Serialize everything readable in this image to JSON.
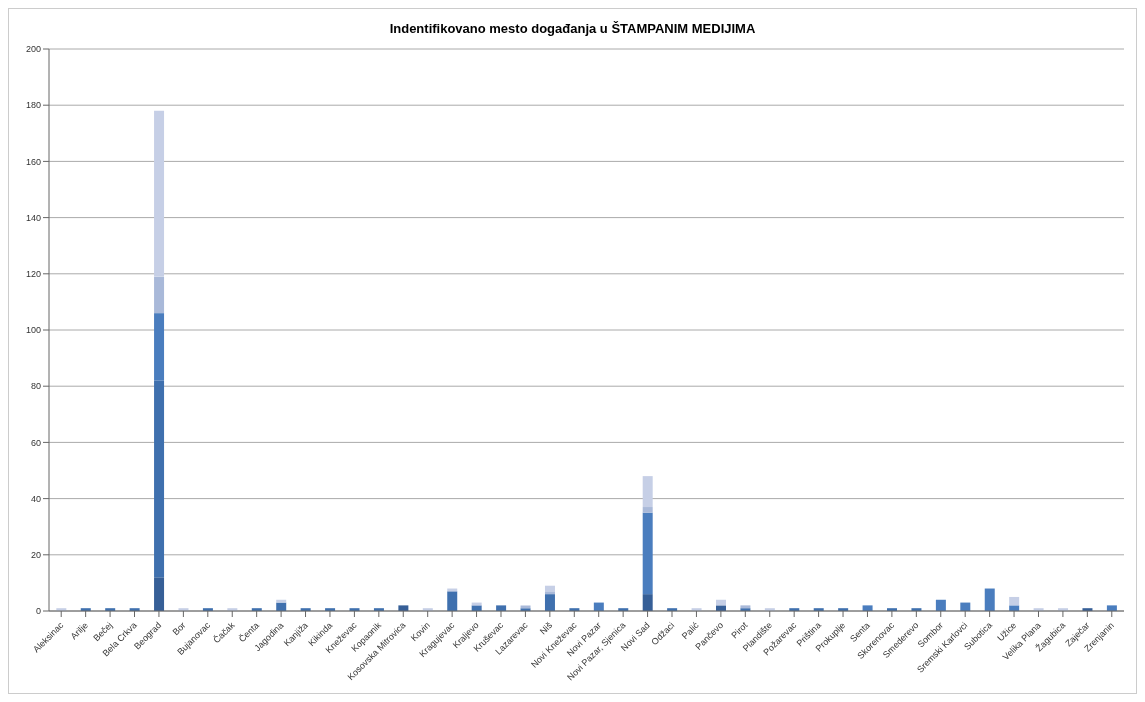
{
  "chart_data": {
    "type": "bar",
    "title": "Indentifikovano mesto događanja u ŠTAMPANIM MEDIJIMA",
    "categories": [
      "Aleksinac",
      "Arilje",
      "Bečej",
      "Bela Crkva",
      "Beograd",
      "Bor",
      "Bujanovac",
      "Čačak",
      "Čenta",
      "Jagodina",
      "Kanjiža",
      "Kikinda",
      "Kneževac",
      "Kopaonik",
      "Kosovska Mitrovica",
      "Kovin",
      "Kragujevac",
      "Kraljevo",
      "Kruševac",
      "Lazarevac",
      "Niš",
      "Novi Kneževac",
      "Novi Pazar",
      "Novi Pazar, Sjenica",
      "Novi Sad",
      "Odžaci",
      "Palić",
      "Pančevo",
      "Pirot",
      "Plandište",
      "Požarevac",
      "Priština",
      "Prokuplje",
      "Senta",
      "Skorenovac",
      "Smederevo",
      "Sombor",
      "Sremski Karlovci",
      "Subotica",
      "Užice",
      "Velika Plana",
      "Žagubica",
      "Zaječar",
      "Zrenjanin"
    ],
    "stacked": true,
    "series": [
      {
        "color": "#365f97",
        "values": [
          null,
          null,
          null,
          null,
          12,
          null,
          null,
          null,
          null,
          null,
          null,
          null,
          null,
          null,
          2,
          null,
          null,
          null,
          null,
          null,
          null,
          null,
          null,
          null,
          6,
          null,
          null,
          2,
          null,
          null,
          null,
          null,
          null,
          null,
          null,
          null,
          null,
          null,
          null,
          null,
          null,
          null,
          1,
          null
        ]
      },
      {
        "color": "#3f70ae",
        "values": [
          null,
          1,
          1,
          1,
          70,
          null,
          1,
          null,
          1,
          3,
          1,
          1,
          1,
          1,
          null,
          null,
          7,
          2,
          2,
          1,
          6,
          1,
          null,
          1,
          null,
          1,
          null,
          null,
          1,
          null,
          1,
          1,
          1,
          null,
          1,
          1,
          null,
          null,
          null,
          null,
          null,
          null,
          null,
          null
        ]
      },
      {
        "color": "#4a7dbe",
        "values": [
          null,
          null,
          null,
          null,
          24,
          null,
          null,
          null,
          null,
          null,
          null,
          null,
          null,
          null,
          null,
          null,
          null,
          null,
          null,
          null,
          null,
          null,
          3,
          null,
          29,
          null,
          null,
          null,
          null,
          null,
          null,
          null,
          null,
          2,
          null,
          null,
          4,
          3,
          8,
          2,
          null,
          null,
          null,
          2
        ]
      },
      {
        "color": "#a9b9d9",
        "values": [
          null,
          null,
          null,
          null,
          13,
          null,
          null,
          null,
          null,
          null,
          null,
          null,
          null,
          null,
          null,
          null,
          null,
          null,
          null,
          1,
          1,
          null,
          null,
          null,
          2,
          null,
          null,
          null,
          1,
          null,
          null,
          null,
          null,
          null,
          null,
          null,
          null,
          null,
          null,
          null,
          null,
          null,
          null,
          null
        ]
      },
      {
        "color": "#c6cfe6",
        "values": [
          1,
          null,
          null,
          null,
          59,
          1,
          null,
          1,
          null,
          1,
          null,
          null,
          null,
          null,
          null,
          1,
          1,
          1,
          null,
          null,
          2,
          null,
          null,
          null,
          11,
          null,
          1,
          2,
          null,
          1,
          null,
          null,
          null,
          null,
          null,
          null,
          null,
          null,
          null,
          3,
          1,
          1,
          null,
          null
        ]
      }
    ],
    "ylim": [
      0,
      200
    ],
    "yticks": [
      0,
      20,
      40,
      60,
      80,
      100,
      120,
      140,
      160,
      180,
      200
    ],
    "grid": "y",
    "legend": false
  }
}
